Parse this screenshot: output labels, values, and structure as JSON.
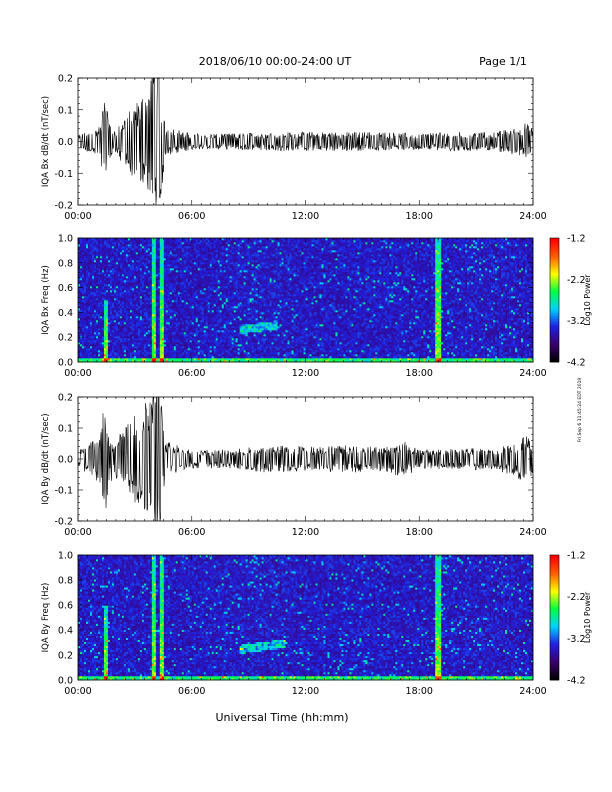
{
  "header": {
    "title": "2018/06/10  00:00-24:00 UT",
    "page": "Page 1/1"
  },
  "side_note": "Fri Sep 6 11:45:24 EDT 2019",
  "colorscale": [
    "#000000",
    "#3a0070",
    "#2020e0",
    "#00d0ff",
    "#00ff40",
    "#ffff00",
    "#ff6000",
    "#ff0000"
  ],
  "chart_data": [
    {
      "type": "line",
      "title": "",
      "xlabel": "",
      "ylabel": "IQA Bx dB/dt (nT/sec)",
      "xlim": [
        0,
        24
      ],
      "ylim": [
        -0.2,
        0.2
      ],
      "x_ticks": [
        "00:00",
        "06:00",
        "12:00",
        "18:00",
        "24:00"
      ],
      "y_ticks": [
        "-0.2",
        "-0.1",
        "0.0",
        "0.1",
        "0.2"
      ],
      "series": [
        {
          "x": [
            0,
            1.2,
            1.4,
            1.6,
            1.9,
            2.2,
            3.8,
            3.9,
            4.1,
            4.3,
            4.6,
            6,
            8,
            10,
            12,
            14,
            16,
            18,
            20,
            22,
            23.2,
            23.6,
            24
          ],
          "envelope": [
            0.02,
            0.05,
            0.19,
            0.08,
            0.03,
            0.06,
            0.18,
            0.26,
            0.3,
            0.22,
            0.05,
            0.025,
            0.025,
            0.03,
            0.03,
            0.03,
            0.03,
            0.025,
            0.03,
            0.03,
            0.045,
            0.06,
            0.04
          ]
        }
      ]
    },
    {
      "type": "heatmap",
      "title": "",
      "xlabel": "",
      "ylabel": "IQA Bx Freq (Hz)",
      "xlim": [
        0,
        24
      ],
      "ylim": [
        0,
        1.0
      ],
      "x_ticks": [
        "00:00",
        "06:00",
        "12:00",
        "18:00",
        "24:00"
      ],
      "y_ticks": [
        "0.0",
        "0.2",
        "0.4",
        "0.6",
        "0.8",
        "1.0"
      ],
      "colorbar": {
        "label": "Log10 Power",
        "range": [
          -4.2,
          -1.2
        ],
        "ticks": [
          "-4.2",
          "-3.2",
          "-2.2",
          "-1.2"
        ]
      },
      "features": [
        {
          "x": 1.5,
          "f_max": 0.5
        },
        {
          "x": 4.0,
          "f_max": 1.0
        },
        {
          "x": 4.4,
          "f_max": 1.0
        },
        {
          "x": 19.0,
          "f_max": 1.0
        },
        {
          "x_range": [
            8.5,
            10.5
          ],
          "f_center": 0.28
        }
      ]
    },
    {
      "type": "line",
      "title": "",
      "xlabel": "",
      "ylabel": "IQA By dB/dt (nT/sec)",
      "xlim": [
        0,
        24
      ],
      "ylim": [
        -0.2,
        0.2
      ],
      "x_ticks": [
        "00:00",
        "06:00",
        "12:00",
        "18:00",
        "24:00"
      ],
      "y_ticks": [
        "-0.2",
        "-0.1",
        "0.0",
        "0.1",
        "0.2"
      ],
      "series": [
        {
          "x": [
            0,
            1.2,
            1.4,
            1.6,
            1.9,
            2.2,
            3.8,
            3.9,
            4.1,
            4.3,
            4.6,
            6,
            8,
            10,
            12,
            14,
            16,
            17.2,
            18,
            20,
            22,
            23.2,
            23.6,
            24
          ],
          "envelope": [
            0.03,
            0.08,
            0.2,
            0.1,
            0.05,
            0.08,
            0.2,
            0.3,
            0.3,
            0.25,
            0.06,
            0.03,
            0.03,
            0.045,
            0.04,
            0.045,
            0.04,
            0.06,
            0.03,
            0.035,
            0.035,
            0.06,
            0.08,
            0.05
          ]
        }
      ]
    },
    {
      "type": "heatmap",
      "title": "",
      "xlabel": "Universal Time (hh:mm)",
      "ylabel": "IQA By Freq (Hz)",
      "xlim": [
        0,
        24
      ],
      "ylim": [
        0,
        1.0
      ],
      "x_ticks": [
        "00:00",
        "06:00",
        "12:00",
        "18:00",
        "24:00"
      ],
      "y_ticks": [
        "0.0",
        "0.2",
        "0.4",
        "0.6",
        "0.8",
        "1.0"
      ],
      "colorbar": {
        "label": "Log10 Power",
        "range": [
          -4.2,
          -1.2
        ],
        "ticks": [
          "-4.2",
          "-3.2",
          "-2.2",
          "-1.2"
        ]
      },
      "features": [
        {
          "x": 1.5,
          "f_max": 0.6
        },
        {
          "x": 4.0,
          "f_max": 1.0
        },
        {
          "x": 4.4,
          "f_max": 1.0
        },
        {
          "x": 19.0,
          "f_max": 1.0
        },
        {
          "x_range": [
            8.5,
            11.0
          ],
          "f_center": 0.27
        }
      ]
    }
  ]
}
